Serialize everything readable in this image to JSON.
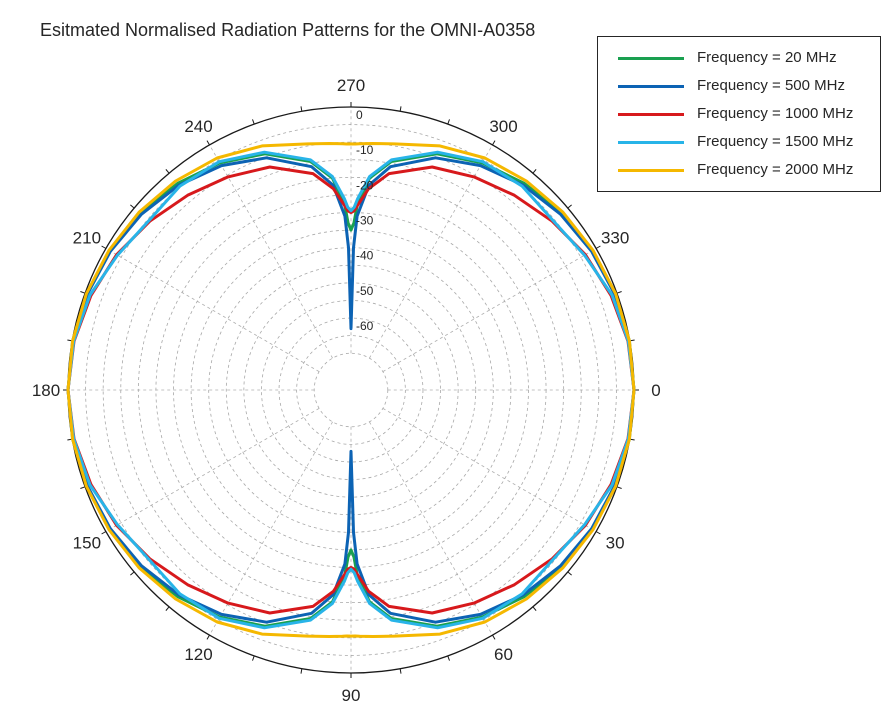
{
  "chart_data": {
    "type": "line",
    "subtype": "polar",
    "title": "Esitmated Normalised Radiation Patterns for the OMNI-A0358",
    "angular_unit": "degrees",
    "angular_direction": "clockwise",
    "angular_zero": "right",
    "angular_ticks": [
      0,
      30,
      60,
      90,
      120,
      150,
      180,
      210,
      240,
      270,
      300,
      330
    ],
    "angular_tick_labels": [
      "0",
      "30",
      "60",
      "90",
      "120",
      "150",
      "180",
      "210",
      "240",
      "270",
      "300",
      "330"
    ],
    "radial_ticks": [
      0,
      -10,
      -20,
      -30,
      -40,
      -50,
      -60
    ],
    "radial_tick_labels": [
      "0",
      "-10",
      "-20",
      "-30",
      "-40",
      "-50",
      "-60"
    ],
    "rlim": [
      -70,
      0
    ],
    "grid": true,
    "legend_placement": "top-right",
    "series": [
      {
        "name": "Frequency = 20 MHz",
        "color": "#1aa050",
        "x": [
          0,
          10,
          20,
          30,
          40,
          50,
          60,
          70,
          80,
          85,
          88,
          89,
          90,
          91,
          92,
          95,
          100,
          110,
          120,
          130,
          140,
          150,
          160,
          170,
          180,
          190,
          200,
          210,
          220,
          230,
          240,
          250,
          260,
          265,
          268,
          269,
          270,
          271,
          272,
          275,
          280,
          290,
          300,
          310,
          320,
          330,
          340,
          350,
          360
        ],
        "y": [
          0,
          -0.1,
          -0.5,
          -1.2,
          -2.2,
          -3.8,
          -5.9,
          -9.0,
          -14.5,
          -20.0,
          -27.5,
          -33.0,
          -35.0,
          -33.0,
          -27.5,
          -20.0,
          -14.5,
          -9.0,
          -5.9,
          -3.8,
          -2.2,
          -1.2,
          -0.5,
          -0.1,
          0,
          -0.1,
          -0.5,
          -1.2,
          -2.2,
          -3.8,
          -5.9,
          -9.0,
          -14.5,
          -20.0,
          -27.5,
          -33.0,
          -35.0,
          -33.0,
          -27.5,
          -20.0,
          -14.5,
          -9.0,
          -5.9,
          -3.8,
          -2.2,
          -1.2,
          -0.5,
          -0.1,
          0
        ]
      },
      {
        "name": "Frequency = 500 MHz",
        "color": "#0c63b4",
        "x": [
          0,
          10,
          20,
          30,
          40,
          50,
          60,
          70,
          80,
          85,
          88,
          89,
          90,
          91,
          92,
          95,
          100,
          110,
          120,
          130,
          140,
          150,
          160,
          170,
          180,
          190,
          200,
          210,
          220,
          230,
          240,
          250,
          260,
          265,
          268,
          269,
          270,
          271,
          272,
          275,
          280,
          290,
          300,
          310,
          320,
          330,
          340,
          350,
          360
        ],
        "y": [
          0,
          -0.2,
          -0.7,
          -1.5,
          -2.7,
          -4.4,
          -6.8,
          -10.2,
          -16.0,
          -22.0,
          -31.0,
          -40.0,
          -63.0,
          -40.0,
          -31.0,
          -22.0,
          -16.0,
          -10.2,
          -6.8,
          -4.4,
          -2.7,
          -1.5,
          -0.7,
          -0.2,
          0,
          -0.2,
          -0.7,
          -1.5,
          -2.7,
          -4.4,
          -6.8,
          -10.2,
          -16.0,
          -22.0,
          -31.0,
          -40.0,
          -63.0,
          -40.0,
          -31.0,
          -22.0,
          -16.0,
          -10.2,
          -6.8,
          -4.4,
          -2.7,
          -1.5,
          -0.7,
          -0.2,
          0
        ]
      },
      {
        "name": "Frequency = 1000 MHz",
        "color": "#d7191c",
        "x": [
          0,
          10,
          20,
          30,
          40,
          50,
          60,
          70,
          80,
          85,
          88,
          89,
          90,
          91,
          92,
          95,
          100,
          110,
          120,
          130,
          140,
          150,
          160,
          170,
          180,
          190,
          200,
          210,
          220,
          230,
          240,
          250,
          260,
          265,
          268,
          269,
          270,
          271,
          272,
          275,
          280,
          290,
          300,
          310,
          320,
          330,
          340,
          350,
          360
        ],
        "y": [
          0,
          -0.5,
          -1.8,
          -3.5,
          -5.8,
          -8.2,
          -10.5,
          -13.0,
          -18.0,
          -23.0,
          -28.0,
          -29.5,
          -30.0,
          -29.5,
          -28.0,
          -23.0,
          -18.0,
          -13.0,
          -10.5,
          -8.2,
          -5.8,
          -3.5,
          -1.8,
          -0.5,
          0,
          -0.5,
          -1.8,
          -3.5,
          -5.8,
          -8.2,
          -10.5,
          -13.0,
          -18.0,
          -23.0,
          -28.0,
          -29.5,
          -30.0,
          -29.5,
          -28.0,
          -23.0,
          -18.0,
          -13.0,
          -10.5,
          -8.2,
          -5.8,
          -3.5,
          -1.8,
          -0.5,
          0
        ]
      },
      {
        "name": "Frequency = 1500 MHz",
        "color": "#28b4e8",
        "x": [
          0,
          10,
          20,
          30,
          40,
          50,
          60,
          70,
          80,
          85,
          88,
          89,
          90,
          91,
          92,
          95,
          100,
          110,
          120,
          130,
          140,
          150,
          160,
          170,
          180,
          190,
          200,
          210,
          220,
          230,
          240,
          250,
          260,
          265,
          268,
          269,
          270,
          271,
          272,
          275,
          280,
          290,
          300,
          310,
          320,
          330,
          340,
          350,
          360
        ],
        "y": [
          0,
          -0.4,
          -1.5,
          -3.8,
          -5.5,
          -4.8,
          -5.5,
          -8.5,
          -14.0,
          -19.5,
          -26.0,
          -28.5,
          -29.5,
          -28.5,
          -26.0,
          -19.5,
          -14.0,
          -8.5,
          -5.5,
          -4.8,
          -5.5,
          -3.8,
          -1.5,
          -0.4,
          0,
          -0.4,
          -1.5,
          -3.8,
          -5.5,
          -4.8,
          -5.5,
          -8.5,
          -14.0,
          -19.5,
          -26.0,
          -28.5,
          -29.5,
          -28.5,
          -26.0,
          -19.5,
          -14.0,
          -8.5,
          -5.5,
          -4.8,
          -5.5,
          -3.8,
          -1.5,
          -0.4,
          0
        ]
      },
      {
        "name": "Frequency = 2000 MHz",
        "color": "#f5b800",
        "x": [
          0,
          10,
          20,
          30,
          40,
          50,
          60,
          70,
          80,
          85,
          88,
          89,
          90,
          91,
          92,
          95,
          100,
          110,
          120,
          130,
          140,
          150,
          160,
          170,
          180,
          190,
          200,
          210,
          220,
          230,
          240,
          250,
          260,
          265,
          268,
          269,
          270,
          271,
          272,
          275,
          280,
          290,
          300,
          310,
          320,
          330,
          340,
          350,
          360
        ],
        "y": [
          0,
          -0.1,
          -0.4,
          -1.0,
          -1.8,
          -2.9,
          -4.3,
          -6.6,
          -9.4,
          -10.1,
          -10.4,
          -10.5,
          -10.5,
          -10.5,
          -10.4,
          -10.1,
          -9.4,
          -6.6,
          -4.3,
          -2.9,
          -1.8,
          -1.0,
          -0.4,
          -0.1,
          0,
          -0.1,
          -0.4,
          -1.0,
          -1.8,
          -2.9,
          -4.3,
          -6.6,
          -9.4,
          -10.1,
          -10.4,
          -10.5,
          -10.5,
          -10.5,
          -10.4,
          -10.1,
          -9.4,
          -6.6,
          -4.3,
          -2.9,
          -1.8,
          -1.0,
          -0.4,
          -0.1,
          0
        ]
      }
    ]
  }
}
